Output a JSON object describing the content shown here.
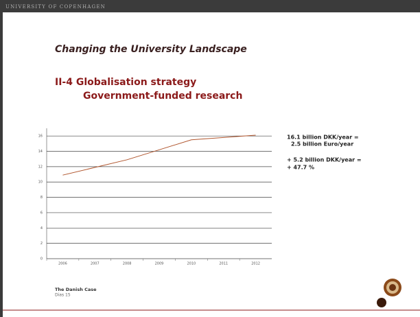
{
  "header": "UNIVERSITY OF COPENHAGEN",
  "title": "Changing the University Landscape",
  "heading": [
    "II-4 Globalisation strategy",
    "Government-funded research"
  ],
  "notes": [
    "16.1 billion DKK/year =",
    "2.5 billion Euro/year",
    "+ 5.2 billion DKK/year =",
    "+ 47.7 %"
  ],
  "footer": {
    "title": "The Danish Case",
    "page": "Dias 15"
  },
  "chart_data": {
    "type": "line",
    "categories": [
      "2006",
      "2007",
      "2008",
      "2009",
      "2010",
      "2011",
      "2012"
    ],
    "values": [
      10.9,
      11.9,
      12.9,
      14.2,
      15.5,
      15.8,
      16.1
    ],
    "color": "#b0552d",
    "ylim": [
      0,
      17
    ],
    "yticks": [
      0,
      2,
      4,
      6,
      8,
      10,
      12,
      14,
      16
    ],
    "grid": true
  }
}
